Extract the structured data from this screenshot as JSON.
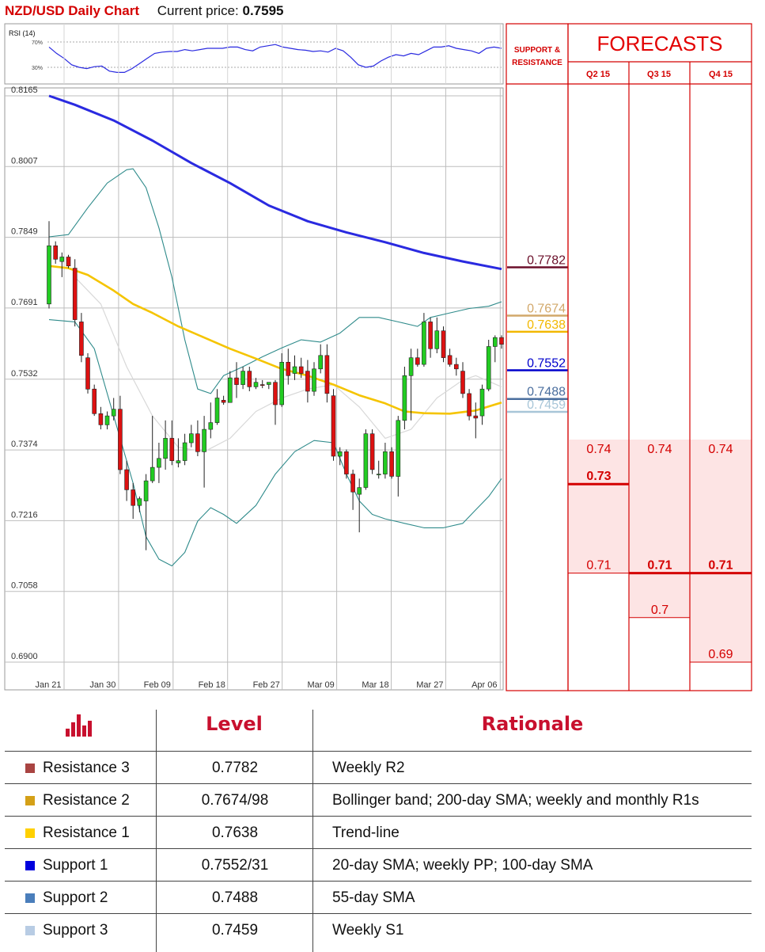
{
  "header": {
    "title": "NZD/USD Daily Chart",
    "price_label": "Current price:",
    "price_value": "0.7595"
  },
  "colors": {
    "sma200": "#2a2ae0",
    "sma55": "#f5c400",
    "bollinger": "#2f8b8b",
    "sma20": "#d8d8d8",
    "bull": "#22cc22",
    "bear": "#dd1111",
    "accent_red": "#d40000",
    "forecast_fill": "#fde4e4"
  },
  "chart_data": {
    "type": "candlestick",
    "ylim": [
      0.687,
      0.82
    ],
    "y_ticks": [
      "0.8165",
      "0.8007",
      "0.7849",
      "0.7691",
      "0.7532",
      "0.7374",
      "0.7216",
      "0.7058",
      "0.6900"
    ],
    "x_ticks": [
      "Jan 21",
      "Jan 30",
      "Feb 09",
      "Feb 18",
      "Feb 27",
      "Mar 09",
      "Mar 18",
      "Mar 27",
      "Apr 06"
    ],
    "rsi": {
      "label": "RSI (14)",
      "levels": [
        "70%",
        "30%"
      ],
      "values": [
        62,
        52,
        44,
        34,
        30,
        28,
        31,
        32,
        24,
        22,
        22,
        28,
        36,
        44,
        52,
        54,
        55,
        55,
        58,
        56,
        58,
        60,
        60,
        60,
        62,
        62,
        58,
        56,
        62,
        64,
        66,
        62,
        60,
        58,
        57,
        55,
        56,
        54,
        60,
        56,
        46,
        34,
        30,
        32,
        40,
        46,
        50,
        48,
        52,
        50,
        56,
        62,
        62,
        64,
        60,
        58,
        56,
        52,
        60,
        62,
        60
      ]
    },
    "candles": [
      {
        "o": 0.77,
        "h": 0.7885,
        "l": 0.769,
        "c": 0.783
      },
      {
        "o": 0.783,
        "h": 0.784,
        "l": 0.779,
        "c": 0.78
      },
      {
        "o": 0.7795,
        "h": 0.7815,
        "l": 0.776,
        "c": 0.7805
      },
      {
        "o": 0.7805,
        "h": 0.781,
        "l": 0.778,
        "c": 0.7785
      },
      {
        "o": 0.778,
        "h": 0.78,
        "l": 0.765,
        "c": 0.7665
      },
      {
        "o": 0.766,
        "h": 0.768,
        "l": 0.757,
        "c": 0.7585
      },
      {
        "o": 0.758,
        "h": 0.759,
        "l": 0.75,
        "c": 0.751
      },
      {
        "o": 0.751,
        "h": 0.752,
        "l": 0.745,
        "c": 0.7455
      },
      {
        "o": 0.7455,
        "h": 0.747,
        "l": 0.742,
        "c": 0.743
      },
      {
        "o": 0.743,
        "h": 0.746,
        "l": 0.742,
        "c": 0.745
      },
      {
        "o": 0.745,
        "h": 0.749,
        "l": 0.744,
        "c": 0.7465
      },
      {
        "o": 0.7465,
        "h": 0.7495,
        "l": 0.732,
        "c": 0.733
      },
      {
        "o": 0.733,
        "h": 0.735,
        "l": 0.726,
        "c": 0.7285
      },
      {
        "o": 0.7285,
        "h": 0.73,
        "l": 0.722,
        "c": 0.725
      },
      {
        "o": 0.725,
        "h": 0.727,
        "l": 0.7235,
        "c": 0.7265
      },
      {
        "o": 0.726,
        "h": 0.732,
        "l": 0.715,
        "c": 0.7305
      },
      {
        "o": 0.7305,
        "h": 0.745,
        "l": 0.73,
        "c": 0.7335
      },
      {
        "o": 0.7335,
        "h": 0.739,
        "l": 0.73,
        "c": 0.7355
      },
      {
        "o": 0.7355,
        "h": 0.744,
        "l": 0.733,
        "c": 0.74
      },
      {
        "o": 0.74,
        "h": 0.744,
        "l": 0.734,
        "c": 0.735
      },
      {
        "o": 0.7345,
        "h": 0.74,
        "l": 0.7335,
        "c": 0.735
      },
      {
        "o": 0.735,
        "h": 0.741,
        "l": 0.734,
        "c": 0.739
      },
      {
        "o": 0.739,
        "h": 0.743,
        "l": 0.738,
        "c": 0.741
      },
      {
        "o": 0.741,
        "h": 0.744,
        "l": 0.736,
        "c": 0.737
      },
      {
        "o": 0.737,
        "h": 0.745,
        "l": 0.729,
        "c": 0.742
      },
      {
        "o": 0.742,
        "h": 0.748,
        "l": 0.74,
        "c": 0.7435
      },
      {
        "o": 0.7435,
        "h": 0.751,
        "l": 0.743,
        "c": 0.749
      },
      {
        "o": 0.7485,
        "h": 0.7495,
        "l": 0.7475,
        "c": 0.748
      },
      {
        "o": 0.748,
        "h": 0.755,
        "l": 0.748,
        "c": 0.7535
      },
      {
        "o": 0.7535,
        "h": 0.757,
        "l": 0.749,
        "c": 0.752
      },
      {
        "o": 0.752,
        "h": 0.756,
        "l": 0.751,
        "c": 0.755
      },
      {
        "o": 0.755,
        "h": 0.756,
        "l": 0.7505,
        "c": 0.7515
      },
      {
        "o": 0.7515,
        "h": 0.7535,
        "l": 0.751,
        "c": 0.7525
      },
      {
        "o": 0.752,
        "h": 0.753,
        "l": 0.7512,
        "c": 0.7518
      },
      {
        "o": 0.752,
        "h": 0.7525,
        "l": 0.751,
        "c": 0.7525
      },
      {
        "o": 0.7525,
        "h": 0.753,
        "l": 0.743,
        "c": 0.7475
      },
      {
        "o": 0.7475,
        "h": 0.759,
        "l": 0.747,
        "c": 0.757
      },
      {
        "o": 0.757,
        "h": 0.76,
        "l": 0.752,
        "c": 0.754
      },
      {
        "o": 0.7545,
        "h": 0.7585,
        "l": 0.753,
        "c": 0.756
      },
      {
        "o": 0.756,
        "h": 0.758,
        "l": 0.7535,
        "c": 0.7545
      },
      {
        "o": 0.755,
        "h": 0.7575,
        "l": 0.748,
        "c": 0.7505
      },
      {
        "o": 0.7505,
        "h": 0.757,
        "l": 0.7495,
        "c": 0.7555
      },
      {
        "o": 0.7555,
        "h": 0.761,
        "l": 0.7545,
        "c": 0.7585
      },
      {
        "o": 0.7585,
        "h": 0.761,
        "l": 0.748,
        "c": 0.75
      },
      {
        "o": 0.7495,
        "h": 0.751,
        "l": 0.735,
        "c": 0.736
      },
      {
        "o": 0.736,
        "h": 0.738,
        "l": 0.734,
        "c": 0.737
      },
      {
        "o": 0.737,
        "h": 0.7375,
        "l": 0.731,
        "c": 0.732
      },
      {
        "o": 0.732,
        "h": 0.733,
        "l": 0.724,
        "c": 0.728
      },
      {
        "o": 0.7275,
        "h": 0.731,
        "l": 0.719,
        "c": 0.729
      },
      {
        "o": 0.729,
        "h": 0.742,
        "l": 0.7285,
        "c": 0.741
      },
      {
        "o": 0.741,
        "h": 0.742,
        "l": 0.732,
        "c": 0.733
      },
      {
        "o": 0.732,
        "h": 0.735,
        "l": 0.731,
        "c": 0.732
      },
      {
        "o": 0.732,
        "h": 0.739,
        "l": 0.731,
        "c": 0.737
      },
      {
        "o": 0.737,
        "h": 0.738,
        "l": 0.731,
        "c": 0.7315
      },
      {
        "o": 0.7315,
        "h": 0.745,
        "l": 0.727,
        "c": 0.744
      },
      {
        "o": 0.744,
        "h": 0.756,
        "l": 0.742,
        "c": 0.754
      },
      {
        "o": 0.754,
        "h": 0.76,
        "l": 0.744,
        "c": 0.758
      },
      {
        "o": 0.758,
        "h": 0.76,
        "l": 0.756,
        "c": 0.7565
      },
      {
        "o": 0.7565,
        "h": 0.768,
        "l": 0.756,
        "c": 0.766
      },
      {
        "o": 0.766,
        "h": 0.767,
        "l": 0.758,
        "c": 0.76
      },
      {
        "o": 0.76,
        "h": 0.767,
        "l": 0.759,
        "c": 0.764
      },
      {
        "o": 0.764,
        "h": 0.765,
        "l": 0.757,
        "c": 0.758
      },
      {
        "o": 0.7585,
        "h": 0.76,
        "l": 0.756,
        "c": 0.7565
      },
      {
        "o": 0.7565,
        "h": 0.758,
        "l": 0.754,
        "c": 0.7555
      },
      {
        "o": 0.755,
        "h": 0.757,
        "l": 0.749,
        "c": 0.75
      },
      {
        "o": 0.75,
        "h": 0.751,
        "l": 0.744,
        "c": 0.745
      },
      {
        "o": 0.745,
        "h": 0.748,
        "l": 0.74,
        "c": 0.7445
      },
      {
        "o": 0.745,
        "h": 0.752,
        "l": 0.743,
        "c": 0.751
      },
      {
        "o": 0.751,
        "h": 0.762,
        "l": 0.7505,
        "c": 0.7605
      },
      {
        "o": 0.7605,
        "h": 0.763,
        "l": 0.757,
        "c": 0.7625
      },
      {
        "o": 0.7625,
        "h": 0.763,
        "l": 0.76,
        "c": 0.761
      }
    ],
    "sma200": [
      [
        0,
        0.8165
      ],
      [
        4,
        0.8145
      ],
      [
        10,
        0.811
      ],
      [
        16,
        0.8065
      ],
      [
        22,
        0.8015
      ],
      [
        28,
        0.797
      ],
      [
        34,
        0.792
      ],
      [
        40,
        0.7885
      ],
      [
        46,
        0.786
      ],
      [
        52,
        0.7838
      ],
      [
        58,
        0.7814
      ],
      [
        64,
        0.7795
      ],
      [
        70,
        0.7778
      ]
    ],
    "sma55": [
      [
        0,
        0.7785
      ],
      [
        3,
        0.778
      ],
      [
        6,
        0.7765
      ],
      [
        10,
        0.773
      ],
      [
        13,
        0.77
      ],
      [
        16,
        0.768
      ],
      [
        20,
        0.765
      ],
      [
        24,
        0.7625
      ],
      [
        28,
        0.76
      ],
      [
        32,
        0.7578
      ],
      [
        36,
        0.7555
      ],
      [
        40,
        0.754
      ],
      [
        44,
        0.752
      ],
      [
        48,
        0.7496
      ],
      [
        52,
        0.7478
      ],
      [
        55,
        0.746
      ],
      [
        58,
        0.7456
      ],
      [
        62,
        0.7455
      ],
      [
        66,
        0.7462
      ],
      [
        70,
        0.748
      ]
    ],
    "sma20": [
      [
        4,
        0.776
      ],
      [
        8,
        0.77
      ],
      [
        12,
        0.756
      ],
      [
        16,
        0.745
      ],
      [
        20,
        0.738
      ],
      [
        24,
        0.737
      ],
      [
        28,
        0.74
      ],
      [
        32,
        0.746
      ],
      [
        36,
        0.749
      ],
      [
        40,
        0.751
      ],
      [
        44,
        0.752
      ],
      [
        48,
        0.747
      ],
      [
        52,
        0.74
      ],
      [
        56,
        0.742
      ],
      [
        60,
        0.749
      ],
      [
        64,
        0.753
      ],
      [
        66,
        0.754
      ],
      [
        70,
        0.7515
      ]
    ],
    "bollinger_upper": [
      [
        0,
        0.785
      ],
      [
        3,
        0.7855
      ],
      [
        6,
        0.7915
      ],
      [
        9,
        0.797
      ],
      [
        12,
        0.8
      ],
      [
        13,
        0.8002
      ],
      [
        15,
        0.796
      ],
      [
        17,
        0.787
      ],
      [
        19,
        0.776
      ],
      [
        21,
        0.762
      ],
      [
        23,
        0.751
      ],
      [
        25,
        0.75
      ],
      [
        27,
        0.754
      ],
      [
        30,
        0.756
      ],
      [
        33,
        0.7582
      ],
      [
        36,
        0.7602
      ],
      [
        39,
        0.762
      ],
      [
        42,
        0.7615
      ],
      [
        45,
        0.7635
      ],
      [
        48,
        0.767
      ],
      [
        51,
        0.767
      ],
      [
        54,
        0.766
      ],
      [
        57,
        0.765
      ],
      [
        59,
        0.767
      ],
      [
        62,
        0.768
      ],
      [
        65,
        0.769
      ],
      [
        68,
        0.7695
      ],
      [
        70,
        0.7705
      ]
    ],
    "bollinger_lower": [
      [
        0,
        0.7665
      ],
      [
        4,
        0.766
      ],
      [
        7,
        0.76
      ],
      [
        10,
        0.745
      ],
      [
        13,
        0.73
      ],
      [
        15,
        0.718
      ],
      [
        17,
        0.713
      ],
      [
        19,
        0.7115
      ],
      [
        21,
        0.7145
      ],
      [
        23,
        0.7215
      ],
      [
        25,
        0.7245
      ],
      [
        27,
        0.723
      ],
      [
        29,
        0.721
      ],
      [
        32,
        0.725
      ],
      [
        35,
        0.732
      ],
      [
        38,
        0.737
      ],
      [
        41,
        0.7395
      ],
      [
        44,
        0.739
      ],
      [
        46,
        0.732
      ],
      [
        48,
        0.726
      ],
      [
        50,
        0.723
      ],
      [
        52,
        0.722
      ],
      [
        55,
        0.721
      ],
      [
        58,
        0.72
      ],
      [
        61,
        0.72
      ],
      [
        64,
        0.721
      ],
      [
        66,
        0.724
      ],
      [
        68,
        0.727
      ],
      [
        70,
        0.731
      ]
    ]
  },
  "sr": {
    "header": [
      "SUPPORT &",
      "RESISTANCE"
    ],
    "levels": [
      {
        "value": 0.7782,
        "label": "0.7782",
        "color": "#6b0f2a"
      },
      {
        "value": 0.7674,
        "label": "0.7674",
        "color": "#d2a86a"
      },
      {
        "value": 0.7638,
        "label": "0.7638",
        "color": "#f2b800"
      },
      {
        "value": 0.7552,
        "label": "0.7552",
        "color": "#0000cc"
      },
      {
        "value": 0.7488,
        "label": "0.7488",
        "color": "#4a6e9e"
      },
      {
        "value": 0.7459,
        "label": "0.7459",
        "color": "#a8c6d8"
      }
    ]
  },
  "forecasts": {
    "title": "FORECASTS",
    "columns": [
      {
        "label": "Q2 15",
        "max": "0.74",
        "avg": "0.73",
        "min": "0.71",
        "max_v": 0.74,
        "avg_v": 0.73,
        "min_v": 0.71
      },
      {
        "label": "Q3 15",
        "max": "0.74",
        "avg": "0.71",
        "min": "0.7",
        "max_v": 0.74,
        "avg_v": 0.71,
        "min_v": 0.7
      },
      {
        "label": "Q4 15",
        "max": "0.74",
        "avg": "0.71",
        "min": "0.69",
        "max_v": 0.74,
        "avg_v": 0.71,
        "min_v": 0.69
      }
    ]
  },
  "table": {
    "headers": [
      "Level",
      "Rationale"
    ],
    "rows": [
      {
        "name": "Resistance 3",
        "level": "0.7782",
        "rationale": "Weekly R2",
        "color": "#a94442"
      },
      {
        "name": "Resistance 2",
        "level": "0.7674/98",
        "rationale": "Bollinger band; 200-day SMA; weekly and monthly R1s",
        "color": "#d4a017"
      },
      {
        "name": "Resistance 1",
        "level": "0.7638",
        "rationale": "Trend-line",
        "color": "#ffd000"
      },
      {
        "name": "Support 1",
        "level": "0.7552/31",
        "rationale": "20-day SMA; weekly PP; 100-day SMA",
        "color": "#0000dd"
      },
      {
        "name": "Support 2",
        "level": "0.7488",
        "rationale": "55-day SMA",
        "color": "#4a7ebb"
      },
      {
        "name": "Support 3",
        "level": "0.7459",
        "rationale": "Weekly S1",
        "color": "#b8cce4"
      }
    ]
  }
}
